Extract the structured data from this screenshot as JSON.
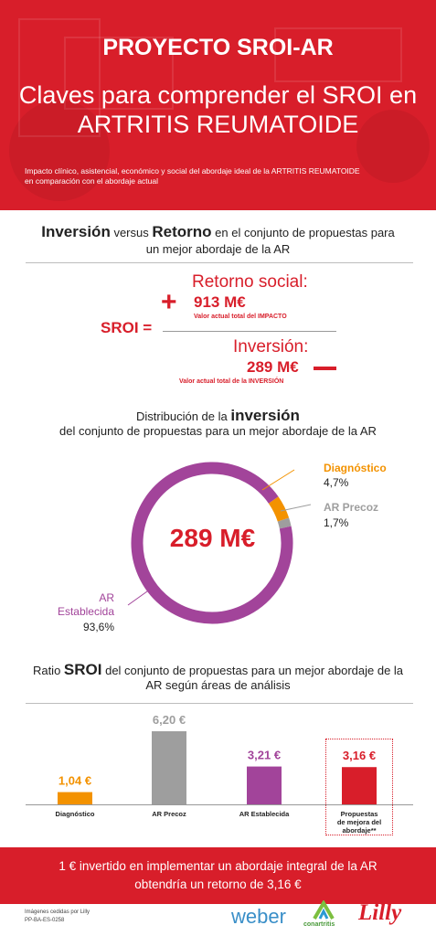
{
  "header": {
    "title": "PROYECTO SROI-AR",
    "subtitle_line1": "Claves para comprender el SROI en",
    "subtitle_line2": "ARTRITIS REUMATOIDE",
    "description_line1": "Impacto clínico, asistencial, económico y social del abordaje ideal de la ARTRITIS REUMATOIDE",
    "description_line2": "en comparación con el abordaje actual"
  },
  "section1": {
    "title_bold1": "Inversión",
    "title_mid1": " versus ",
    "title_bold2": "Retorno",
    "title_rest": " en el conjunto de propuestas para",
    "title_line2": "un mejor abordaje de la AR",
    "sroi_label": "SROI =",
    "plus_sign": "+",
    "return_title": "Retorno social:",
    "return_value": "913 M€",
    "return_note": "Valor actual total del IMPACTO",
    "investment_title": "Inversión:",
    "investment_value": "289 M€",
    "investment_note": "Valor actual total de la INVERSIÓN"
  },
  "section2": {
    "title_pre": "Distribución de la ",
    "title_bold": "inversión",
    "title_line2": "del conjunto de propuestas para un mejor abordaje de la AR",
    "center_value": "289 M€",
    "segments": [
      {
        "name": "Diagnóstico",
        "value": "4,7%",
        "color": "#f39200"
      },
      {
        "name": "AR Precoz",
        "value": "1,7%",
        "color": "#9e9e9e"
      },
      {
        "name_line1": "AR",
        "name_line2": "Establecida",
        "value": "93,6%",
        "color": "#a2449a"
      }
    ]
  },
  "chart_data": {
    "type": "bar",
    "categories": [
      "Diagnóstico",
      "AR Precoz",
      "AR Establecida",
      "Propuestas de mejora del abordaje**"
    ],
    "values": [
      1.04,
      6.2,
      3.21,
      3.16
    ],
    "value_labels": [
      "1,04 €",
      "6,20 €",
      "3,21 €",
      "3,16 €"
    ],
    "colors": [
      "#f39200",
      "#9e9e9e",
      "#a2449a",
      "#d81e2a"
    ],
    "title": "Ratio SROI del conjunto de propuestas para un mejor abordaje de la AR según áreas de análisis",
    "ylim": [
      0,
      6.5
    ]
  },
  "section3": {
    "title_pre": "Ratio ",
    "title_bold": "SROI",
    "title_rest": " del conjunto de propuestas para un mejor abordaje de la",
    "title_line2": "AR según áreas de análisis",
    "label_4_line1": "Propuestas",
    "label_4_line2": "de mejora del",
    "label_4_line3": "abordaje**"
  },
  "footer": {
    "line1": "1 € invertido en implementar un abordaje integral de la AR",
    "line2": "obtendría un retorno de 3,16 €"
  },
  "credits": {
    "images": "Imágenes cedidas por Lilly",
    "code": "PP-BA-ES-0258"
  },
  "logos": {
    "weber": "weber",
    "conartritis": "conartritis",
    "lilly": "Lilly"
  }
}
